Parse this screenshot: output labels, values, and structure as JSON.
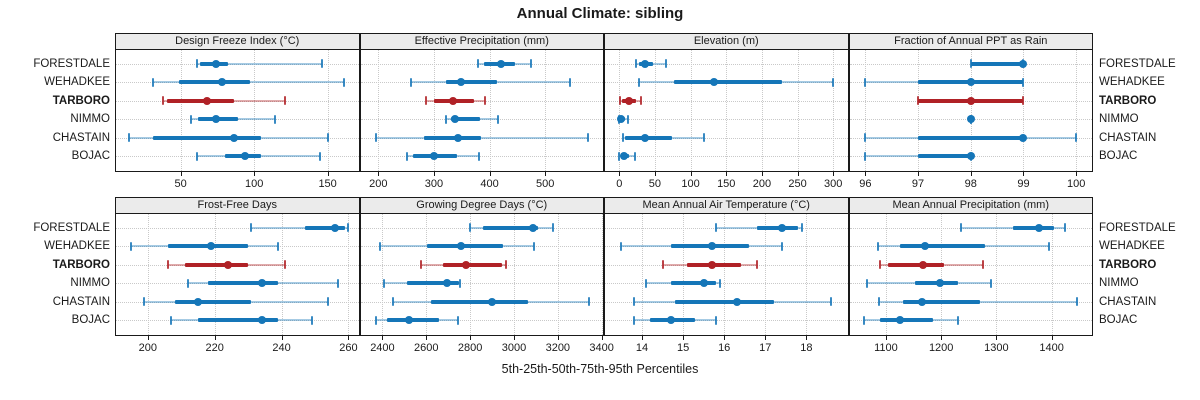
{
  "chart_data": {
    "type": "dotplot-intervals",
    "title": "Annual Climate: sibling",
    "caption": "5th-25th-50th-75th-95th Percentiles",
    "percentiles": [
      5,
      25,
      50,
      75,
      95
    ],
    "series_labels": [
      "FORESTDALE",
      "WEHADKEE",
      "TARBORO",
      "NIMMO",
      "CHASTAIN",
      "BOJAC"
    ],
    "highlight_series": "TARBORO",
    "legend": "none",
    "grid": "dotted",
    "colors": {
      "normal": "#1576b8",
      "highlight": "#b02126",
      "strip_bg": "#ebebeb",
      "panel_border": "#1a1a1a",
      "gridline": "#c9c9c9",
      "text": "#1a1a1a"
    },
    "panels": [
      {
        "title": "Design Freeze Index (°C)",
        "grid_row": 0,
        "grid_col": 0,
        "ticks": [
          50,
          100,
          150
        ],
        "xlim": [
          6,
          171
        ],
        "values": [
          [
            61,
            63,
            74,
            82,
            146
          ],
          [
            31,
            49,
            78,
            97,
            161
          ],
          [
            38,
            41,
            68,
            86,
            121
          ],
          [
            57,
            62,
            74,
            89,
            114
          ],
          [
            15,
            31,
            86,
            105,
            150
          ],
          [
            61,
            80,
            94,
            105,
            145
          ]
        ]
      },
      {
        "title": "Effective Precipitation (mm)",
        "grid_row": 0,
        "grid_col": 1,
        "ticks": [
          200,
          300,
          400,
          500
        ],
        "xlim": [
          168,
          604
        ],
        "values": [
          [
            380,
            390,
            421,
            445,
            474
          ],
          [
            258,
            322,
            348,
            414,
            544
          ],
          [
            285,
            300,
            335,
            372,
            392
          ],
          [
            322,
            330,
            338,
            383,
            415
          ],
          [
            195,
            283,
            344,
            384,
            577
          ],
          [
            252,
            262,
            301,
            342,
            381
          ]
        ]
      },
      {
        "title": "Elevation (m)",
        "grid_row": 0,
        "grid_col": 2,
        "ticks": [
          0,
          50,
          100,
          150,
          200,
          250,
          300
        ],
        "xlim": [
          -20,
          320
        ],
        "values": [
          [
            23,
            28,
            36,
            48,
            66
          ],
          [
            27,
            77,
            133,
            228,
            300
          ],
          [
            1,
            4,
            14,
            23,
            30
          ],
          [
            0,
            1,
            3,
            8,
            12
          ],
          [
            5,
            8,
            36,
            74,
            119
          ],
          [
            0,
            2,
            6,
            13,
            22
          ]
        ]
      },
      {
        "title": "Fraction of Annual PPT as Rain",
        "grid_row": 0,
        "grid_col": 3,
        "ticks": [
          96,
          97,
          98,
          99,
          100
        ],
        "xlim": [
          95.7,
          100.3
        ],
        "values": [
          [
            98,
            98,
            99,
            99,
            99
          ],
          [
            96,
            97,
            98,
            99,
            99
          ],
          [
            97,
            97,
            98,
            99,
            99
          ],
          [
            98,
            98,
            98,
            98,
            98
          ],
          [
            96,
            97,
            99,
            99,
            100
          ],
          [
            96,
            97,
            98,
            98,
            98
          ]
        ]
      },
      {
        "title": "Frost-Free Days",
        "grid_row": 1,
        "grid_col": 0,
        "ticks": [
          200,
          220,
          240,
          260
        ],
        "xlim": [
          190.5,
          263
        ],
        "values": [
          [
            231,
            247,
            256,
            259,
            260
          ],
          [
            195,
            206,
            219,
            230,
            239
          ],
          [
            206,
            211,
            224,
            230,
            241
          ],
          [
            212,
            218,
            234,
            239,
            257
          ],
          [
            199,
            208,
            215,
            231,
            254
          ],
          [
            207,
            215,
            234,
            239,
            249
          ]
        ]
      },
      {
        "title": "Growing Degree Days (°C)",
        "grid_row": 1,
        "grid_col": 1,
        "ticks": [
          2400,
          2600,
          2800,
          3000,
          3200,
          3400
        ],
        "xlim": [
          2300,
          3406
        ],
        "values": [
          [
            2800,
            2860,
            3085,
            3110,
            3180
          ],
          [
            2390,
            2605,
            2760,
            2950,
            3090
          ],
          [
            2575,
            2675,
            2780,
            2945,
            2965
          ],
          [
            2405,
            2510,
            2695,
            2748,
            2756
          ],
          [
            2450,
            2620,
            2900,
            3065,
            3340
          ],
          [
            2370,
            2420,
            2520,
            2660,
            2745
          ]
        ]
      },
      {
        "title": "Mean Annual Air Temperature (°C)",
        "grid_row": 1,
        "grid_col": 2,
        "ticks": [
          14,
          15,
          16,
          17,
          18
        ],
        "xlim": [
          13.1,
          19.0
        ],
        "values": [
          [
            15.8,
            16.8,
            17.4,
            17.8,
            17.9
          ],
          [
            13.5,
            14.7,
            15.7,
            16.6,
            17.4
          ],
          [
            14.5,
            15.1,
            15.7,
            16.4,
            16.8
          ],
          [
            14.1,
            14.7,
            15.5,
            15.8,
            15.9
          ],
          [
            13.8,
            14.8,
            16.3,
            17.2,
            18.6
          ],
          [
            13.8,
            14.2,
            14.7,
            15.3,
            15.8
          ]
        ]
      },
      {
        "title": "Mean Annual Precipitation (mm)",
        "grid_row": 1,
        "grid_col": 3,
        "ticks": [
          1100,
          1200,
          1300,
          1400
        ],
        "xlim": [
          1034,
          1473
        ],
        "values": [
          [
            1235,
            1330,
            1377,
            1405,
            1425
          ],
          [
            1085,
            1125,
            1170,
            1280,
            1395
          ],
          [
            1090,
            1103,
            1167,
            1205,
            1275
          ],
          [
            1065,
            1152,
            1198,
            1230,
            1290
          ],
          [
            1087,
            1130,
            1166,
            1270,
            1445
          ],
          [
            1060,
            1090,
            1125,
            1185,
            1230
          ]
        ]
      }
    ]
  }
}
